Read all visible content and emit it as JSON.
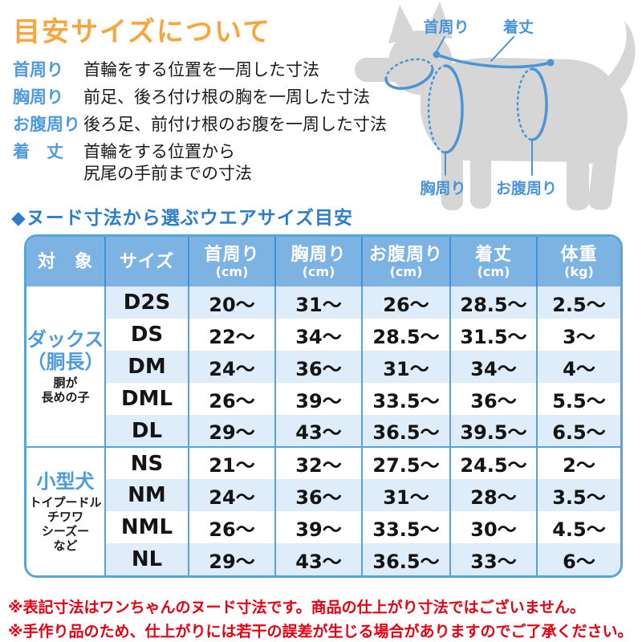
{
  "title": "目安サイズについて",
  "definitions": [
    {
      "term": "首周り",
      "desc": "首輪をする位置を一周した寸法"
    },
    {
      "term": "胸周り",
      "desc": "前足、後ろ付け根の胸を一周した寸法"
    },
    {
      "term": "お腹周り",
      "desc": "後ろ足、前付け根のお腹を一周した寸法"
    },
    {
      "term": "着　丈",
      "desc": "首輪をする位置から\n尻尾の手前までの寸法"
    }
  ],
  "diagram": {
    "labels": {
      "neck": "首周り",
      "length": "着丈",
      "chest": "胸周り",
      "belly": "お腹周り"
    }
  },
  "section_title": "◆ヌード寸法から選ぶウエアサイズ目安",
  "table": {
    "headers": [
      {
        "label": "対　象",
        "unit": ""
      },
      {
        "label": "サイズ",
        "unit": ""
      },
      {
        "label": "首周り",
        "unit": "(cm)"
      },
      {
        "label": "胸周り",
        "unit": "(cm)"
      },
      {
        "label": "お腹周り",
        "unit": "(cm)"
      },
      {
        "label": "着丈",
        "unit": "(cm)"
      },
      {
        "label": "体重",
        "unit": "(kg)"
      }
    ],
    "groups": [
      {
        "name": "ダックス\n（胴長）",
        "note": "胴が\n長めの子",
        "rows": [
          {
            "size": "D2S",
            "neck": "20～",
            "chest": "31～",
            "belly": "26～",
            "length": "28.5～",
            "weight": "2.5～"
          },
          {
            "size": "DS",
            "neck": "22～",
            "chest": "34～",
            "belly": "28.5～",
            "length": "31.5～",
            "weight": "3～"
          },
          {
            "size": "DM",
            "neck": "24～",
            "chest": "36～",
            "belly": "31～",
            "length": "34～",
            "weight": "4～"
          },
          {
            "size": "DML",
            "neck": "26～",
            "chest": "39～",
            "belly": "33.5～",
            "length": "36～",
            "weight": "5.5～"
          },
          {
            "size": "DL",
            "neck": "29～",
            "chest": "43～",
            "belly": "36.5～",
            "length": "39.5～",
            "weight": "6.5～"
          }
        ]
      },
      {
        "name": "小型犬",
        "note": "トイプードル\nチワワ\nシーズー\nなど",
        "rows": [
          {
            "size": "NS",
            "neck": "21～",
            "chest": "32～",
            "belly": "27.5～",
            "length": "24.5～",
            "weight": "2～"
          },
          {
            "size": "NM",
            "neck": "24～",
            "chest": "36～",
            "belly": "31～",
            "length": "28～",
            "weight": "3.5～"
          },
          {
            "size": "NML",
            "neck": "26～",
            "chest": "39～",
            "belly": "33.5～",
            "length": "30～",
            "weight": "4.5～"
          },
          {
            "size": "NL",
            "neck": "29～",
            "chest": "43～",
            "belly": "36.5～",
            "length": "33～",
            "weight": "6～"
          }
        ]
      }
    ]
  },
  "notes": [
    "※表記寸法はワンちゃんのヌード寸法です。商品の仕上がり寸法ではございません。",
    "※手作り品のため、仕上がりには若干の誤差が生じる場合がありますのでご了承ください。"
  ],
  "colors": {
    "title_orange": "#F7A53C",
    "term_blue": "#4D9BDD",
    "section_blue": "#2E7DCB",
    "header_bg": "#7DB3E3",
    "row_light_blue": "#DEEDF9",
    "table_border": "#55A4DB",
    "note_red": "#E50012",
    "dog_gray": "#D6D6D6",
    "diagram_blue": "#4A94D8"
  }
}
